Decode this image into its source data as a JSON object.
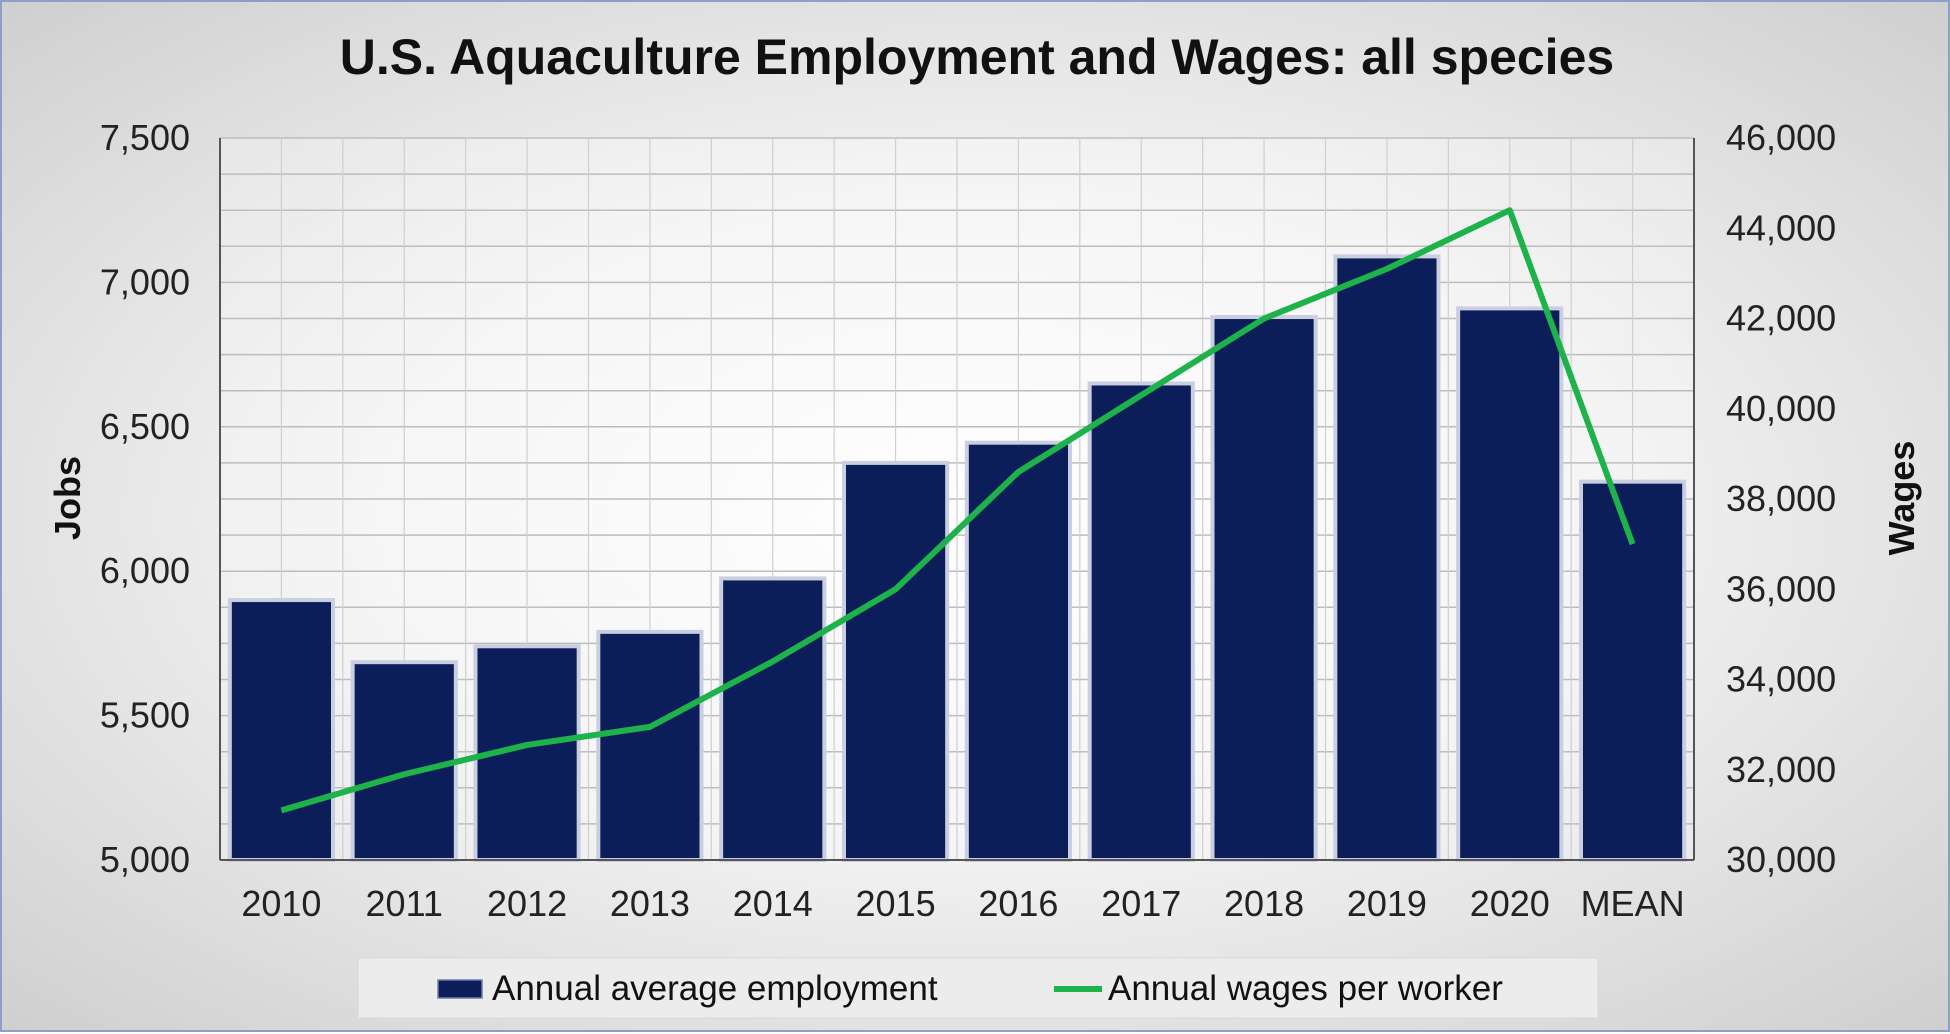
{
  "chart_data": {
    "type": "bar",
    "title": "U.S. Aquaculture Employment and Wages: all species",
    "categories": [
      "2010",
      "2011",
      "2012",
      "2013",
      "2014",
      "2015",
      "2016",
      "2017",
      "2018",
      "2019",
      "2020",
      "MEAN"
    ],
    "series": [
      {
        "name": "Annual average employment",
        "type": "bar",
        "axis": "left",
        "color": "#0c1e5a",
        "values": [
          5900,
          5685,
          5740,
          5790,
          5975,
          6375,
          6445,
          6650,
          6880,
          7090,
          6910,
          6310
        ]
      },
      {
        "name": "Annual wages per worker",
        "type": "line",
        "axis": "right",
        "color": "#1db24a",
        "values": [
          31100,
          31900,
          32550,
          32950,
          34400,
          36000,
          38600,
          40300,
          42000,
          43100,
          44400,
          37000
        ]
      }
    ],
    "ylabel": "Jobs",
    "ylim": [
      5000,
      7500
    ],
    "yticks": [
      "5,000",
      "5,500",
      "6,000",
      "6,500",
      "7,000",
      "7,500"
    ],
    "y2label": "Wages",
    "y2lim": [
      30000,
      46000
    ],
    "y2ticks": [
      "30,000",
      "32,000",
      "34,000",
      "36,000",
      "38,000",
      "40,000",
      "42,000",
      "44,000",
      "46,000"
    ],
    "grid": true,
    "legend_position": "bottom"
  }
}
